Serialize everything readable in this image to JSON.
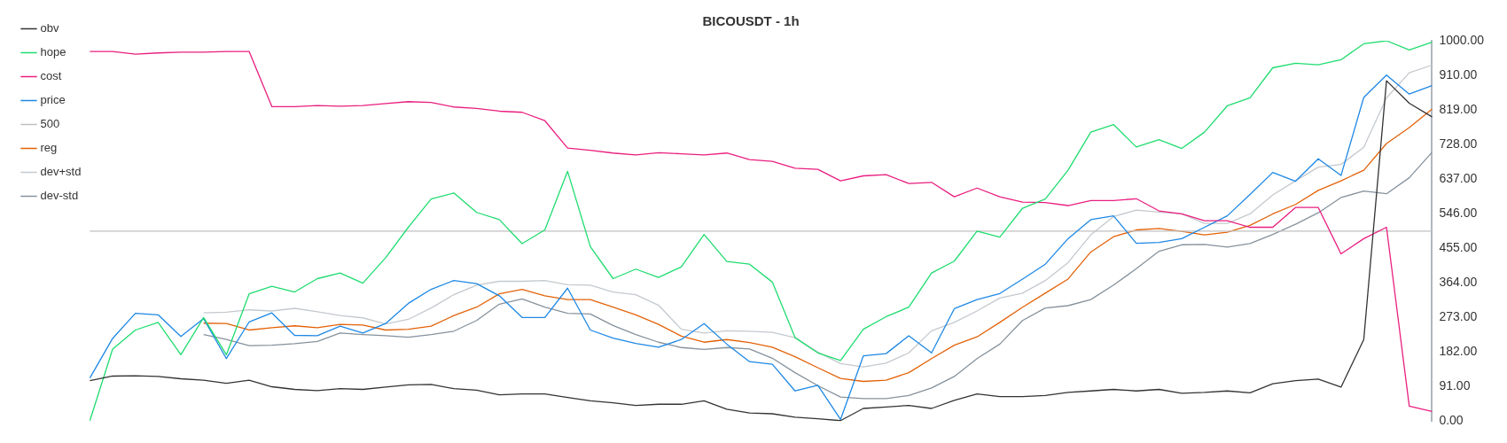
{
  "chart_data": {
    "type": "line",
    "title": "BICOUSDT - 1h",
    "categories": [
      null,
      null,
      null,
      null,
      null,
      null,
      null,
      null,
      null,
      null,
      null,
      null,
      null,
      null,
      null,
      null,
      null,
      null,
      null,
      null,
      null,
      null,
      null,
      null,
      null,
      null,
      null,
      null,
      null,
      null,
      null,
      null,
      null,
      null,
      null,
      null,
      null,
      null,
      null,
      null,
      null,
      null,
      null,
      null,
      null,
      null,
      null,
      null,
      null,
      null,
      null,
      null,
      null,
      null,
      null,
      null,
      null,
      null,
      null,
      null
    ],
    "series": [
      {
        "name": "obv",
        "color": "#333333",
        "values": [
          107,
          119,
          120,
          118,
          112,
          108,
          100,
          108,
          91,
          84,
          81,
          86,
          84,
          90,
          96,
          97,
          86,
          82,
          70,
          72,
          72,
          63,
          54,
          49,
          42,
          45,
          45,
          54,
          32,
          22,
          20,
          11,
          7,
          2,
          34,
          38,
          42,
          34,
          55,
          72,
          65,
          65,
          68,
          76,
          80,
          84,
          80,
          84,
          74,
          76,
          80,
          75,
          99,
          107,
          111,
          90,
          215,
          895,
          836,
          800
        ]
      },
      {
        "name": "hope",
        "color": "#1fdc6f",
        "values": [
          2,
          190,
          240,
          260,
          175,
          273,
          175,
          335,
          355,
          340,
          375,
          390,
          363,
          430,
          510,
          584,
          600,
          549,
          530,
          467,
          503,
          657,
          459,
          375,
          400,
          378,
          406,
          491,
          420,
          413,
          366,
          220,
          180,
          160,
          242,
          275,
          300,
          390,
          421,
          500,
          484,
          560,
          584,
          660,
          760,
          780,
          721,
          740,
          717,
          760,
          829,
          850,
          929,
          941,
          937,
          950,
          992,
          1000,
          976,
          996
        ]
      },
      {
        "name": "cost",
        "color": "#e91e7f",
        "values": [
          972,
          972,
          965,
          968,
          970,
          970,
          972,
          972,
          827,
          827,
          830,
          828,
          830,
          835,
          840,
          838,
          826,
          822,
          815,
          812,
          790,
          718,
          712,
          705,
          700,
          706,
          703,
          700,
          705,
          688,
          683,
          665,
          662,
          632,
          645,
          648,
          625,
          628,
          590,
          613,
          590,
          576,
          575,
          567,
          580,
          580,
          585,
          553,
          545,
          527,
          527,
          510,
          510,
          562,
          562,
          440,
          480,
          510,
          40,
          26
        ]
      },
      {
        "name": "price",
        "color": "#1e88e5",
        "values": [
          114,
          218,
          284,
          280,
          223,
          270,
          165,
          261,
          285,
          226,
          225,
          250,
          232,
          257,
          310,
          347,
          370,
          362,
          330,
          273,
          273,
          350,
          240,
          219,
          205,
          195,
          215,
          257,
          203,
          157,
          150,
          80,
          95,
          5,
          172,
          178,
          225,
          180,
          296,
          320,
          336,
          374,
          413,
          480,
          530,
          540,
          468,
          470,
          480,
          510,
          540,
          596,
          654,
          631,
          690,
          646,
          851,
          910,
          860,
          882
        ]
      },
      {
        "name": "500",
        "color": "#c0c0c0",
        "values": [
          500,
          500,
          500,
          500,
          500,
          500,
          500,
          500,
          500,
          500,
          500,
          500,
          500,
          500,
          500,
          500,
          500,
          500,
          500,
          500,
          500,
          500,
          500,
          500,
          500,
          500,
          500,
          500,
          500,
          500,
          500,
          500,
          500,
          500,
          500,
          500,
          500,
          500,
          500,
          500,
          500,
          500,
          500,
          500,
          500,
          500,
          500,
          500,
          500,
          500,
          500,
          500,
          500,
          500,
          500,
          500,
          500,
          500,
          500,
          500
        ]
      },
      {
        "name": "reg",
        "color": "#e36209",
        "values": [
          null,
          null,
          null,
          null,
          null,
          258,
          257,
          240,
          246,
          251,
          246,
          255,
          253,
          240,
          242,
          250,
          278,
          300,
          335,
          347,
          330,
          320,
          320,
          300,
          280,
          255,
          224,
          208,
          215,
          207,
          195,
          170,
          141,
          113,
          105,
          108,
          128,
          165,
          200,
          222,
          260,
          300,
          337,
          374,
          445,
          485,
          503,
          507,
          499,
          490,
          497,
          515,
          545,
          570,
          607,
          632,
          660,
          730,
          772,
          820
        ]
      },
      {
        "name": "dev+std",
        "color": "#c4c9ce",
        "values": [
          null,
          null,
          null,
          null,
          null,
          285,
          287,
          293,
          290,
          297,
          288,
          278,
          272,
          256,
          268,
          298,
          333,
          358,
          368,
          368,
          370,
          359,
          358,
          340,
          333,
          305,
          242,
          232,
          238,
          237,
          234,
          220,
          182,
          152,
          143,
          153,
          180,
          238,
          260,
          290,
          324,
          337,
          370,
          417,
          490,
          538,
          555,
          550,
          545,
          520,
          520,
          545,
          595,
          632,
          668,
          675,
          720,
          850,
          916,
          936
        ]
      },
      {
        "name": "dev-std",
        "color": "#86929c",
        "values": [
          null,
          null,
          null,
          null,
          null,
          228,
          215,
          199,
          200,
          204,
          210,
          232,
          228,
          225,
          221,
          228,
          237,
          265,
          308,
          322,
          300,
          284,
          282,
          252,
          228,
          208,
          194,
          189,
          194,
          190,
          166,
          128,
          94,
          64,
          60,
          60,
          68,
          88,
          118,
          165,
          203,
          265,
          298,
          304,
          320,
          358,
          401,
          447,
          464,
          465,
          458,
          467,
          491,
          518,
          548,
          588,
          605,
          598,
          640,
          707
        ]
      }
    ],
    "ylim": [
      0,
      1000
    ],
    "yticks": [
      {
        "value": 0,
        "label": "0.00"
      },
      {
        "value": 91,
        "label": "91.00"
      },
      {
        "value": 182,
        "label": "182.00"
      },
      {
        "value": 273,
        "label": "273.00"
      },
      {
        "value": 364,
        "label": "364.00"
      },
      {
        "value": 455,
        "label": "455.00"
      },
      {
        "value": 546,
        "label": "546.00"
      },
      {
        "value": 637,
        "label": "637.00"
      },
      {
        "value": 728,
        "label": "728.00"
      },
      {
        "value": 819,
        "label": "819.00"
      },
      {
        "value": 910,
        "label": "910.00"
      },
      {
        "value": 1000,
        "label": "1000.00"
      }
    ],
    "grid": false,
    "legend": "top left",
    "marker": "none",
    "line_style": "solid"
  }
}
